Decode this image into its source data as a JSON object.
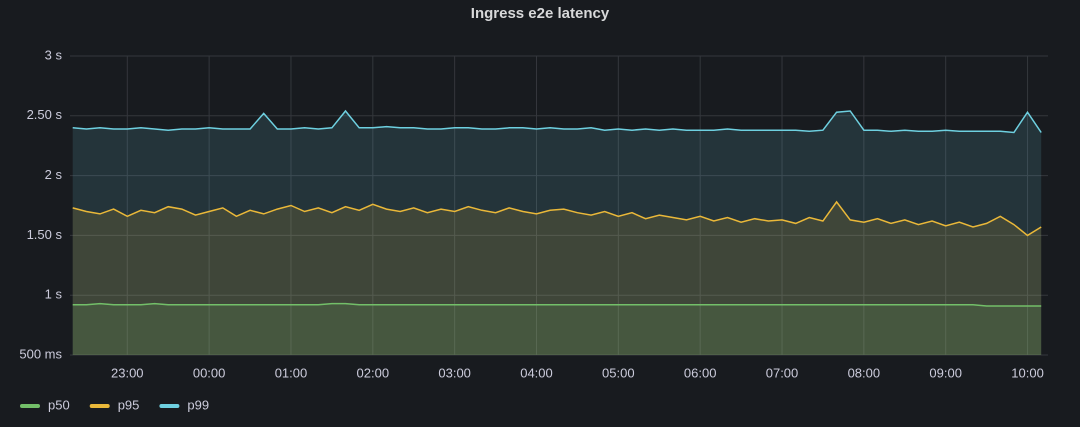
{
  "chart_data": {
    "type": "line",
    "title": "Ingress e2e latency",
    "x": [
      "22:20",
      "22:30",
      "22:40",
      "22:50",
      "23:00",
      "23:10",
      "23:20",
      "23:30",
      "23:40",
      "23:50",
      "00:00",
      "00:10",
      "00:20",
      "00:30",
      "00:40",
      "00:50",
      "01:00",
      "01:10",
      "01:20",
      "01:30",
      "01:40",
      "01:50",
      "02:00",
      "02:10",
      "02:20",
      "02:30",
      "02:40",
      "02:50",
      "03:00",
      "03:10",
      "03:20",
      "03:30",
      "03:40",
      "03:50",
      "04:00",
      "04:10",
      "04:20",
      "04:30",
      "04:40",
      "04:50",
      "05:00",
      "05:10",
      "05:20",
      "05:30",
      "05:40",
      "05:50",
      "06:00",
      "06:10",
      "06:20",
      "06:30",
      "06:40",
      "06:50",
      "07:00",
      "07:10",
      "07:20",
      "07:30",
      "07:40",
      "07:50",
      "08:00",
      "08:10",
      "08:20",
      "08:30",
      "08:40",
      "08:50",
      "09:00",
      "09:10",
      "09:20",
      "09:30",
      "09:40",
      "09:50",
      "10:00",
      "10:10"
    ],
    "xlim": [
      "22:18",
      "10:15"
    ],
    "xticks": [
      "23:00",
      "00:00",
      "01:00",
      "02:00",
      "03:00",
      "04:00",
      "05:00",
      "06:00",
      "07:00",
      "08:00",
      "09:00",
      "10:00"
    ],
    "ylim": [
      0.5,
      3
    ],
    "yticks": [
      {
        "value": 0.5,
        "label": "500 ms"
      },
      {
        "value": 1,
        "label": "1 s"
      },
      {
        "value": 1.5,
        "label": "1.50 s"
      },
      {
        "value": 2,
        "label": "2 s"
      },
      {
        "value": 2.5,
        "label": "2.50 s"
      },
      {
        "value": 3,
        "label": "3 s"
      }
    ],
    "grid": true,
    "legend": "bottom-left",
    "series": [
      {
        "name": "p50",
        "color": "#73bf69",
        "values": [
          0.92,
          0.92,
          0.93,
          0.92,
          0.92,
          0.92,
          0.93,
          0.92,
          0.92,
          0.92,
          0.92,
          0.92,
          0.92,
          0.92,
          0.92,
          0.92,
          0.92,
          0.92,
          0.92,
          0.93,
          0.93,
          0.92,
          0.92,
          0.92,
          0.92,
          0.92,
          0.92,
          0.92,
          0.92,
          0.92,
          0.92,
          0.92,
          0.92,
          0.92,
          0.92,
          0.92,
          0.92,
          0.92,
          0.92,
          0.92,
          0.92,
          0.92,
          0.92,
          0.92,
          0.92,
          0.92,
          0.92,
          0.92,
          0.92,
          0.92,
          0.92,
          0.92,
          0.92,
          0.92,
          0.92,
          0.92,
          0.92,
          0.92,
          0.92,
          0.92,
          0.92,
          0.92,
          0.92,
          0.92,
          0.92,
          0.92,
          0.92,
          0.91,
          0.91,
          0.91,
          0.91,
          0.91
        ]
      },
      {
        "name": "p95",
        "color": "#eab839",
        "values": [
          1.73,
          1.7,
          1.68,
          1.72,
          1.66,
          1.71,
          1.69,
          1.74,
          1.72,
          1.67,
          1.7,
          1.73,
          1.66,
          1.71,
          1.68,
          1.72,
          1.75,
          1.7,
          1.73,
          1.69,
          1.74,
          1.71,
          1.76,
          1.72,
          1.7,
          1.73,
          1.69,
          1.72,
          1.7,
          1.74,
          1.71,
          1.69,
          1.73,
          1.7,
          1.68,
          1.71,
          1.72,
          1.69,
          1.67,
          1.7,
          1.66,
          1.69,
          1.64,
          1.67,
          1.65,
          1.63,
          1.66,
          1.62,
          1.65,
          1.61,
          1.64,
          1.62,
          1.63,
          1.6,
          1.65,
          1.62,
          1.78,
          1.63,
          1.61,
          1.64,
          1.6,
          1.63,
          1.59,
          1.62,
          1.58,
          1.61,
          1.57,
          1.6,
          1.66,
          1.59,
          1.5,
          1.57
        ]
      },
      {
        "name": "p99",
        "color": "#6ed0e0",
        "values": [
          2.4,
          2.39,
          2.4,
          2.39,
          2.39,
          2.4,
          2.39,
          2.38,
          2.39,
          2.39,
          2.4,
          2.39,
          2.39,
          2.39,
          2.52,
          2.39,
          2.39,
          2.4,
          2.39,
          2.4,
          2.54,
          2.4,
          2.4,
          2.41,
          2.4,
          2.4,
          2.39,
          2.39,
          2.4,
          2.4,
          2.39,
          2.39,
          2.4,
          2.4,
          2.39,
          2.4,
          2.39,
          2.39,
          2.4,
          2.38,
          2.39,
          2.38,
          2.39,
          2.38,
          2.39,
          2.38,
          2.38,
          2.38,
          2.39,
          2.38,
          2.38,
          2.38,
          2.38,
          2.38,
          2.37,
          2.38,
          2.53,
          2.54,
          2.38,
          2.38,
          2.37,
          2.38,
          2.37,
          2.37,
          2.38,
          2.37,
          2.37,
          2.37,
          2.37,
          2.36,
          2.53,
          2.36
        ]
      }
    ]
  }
}
